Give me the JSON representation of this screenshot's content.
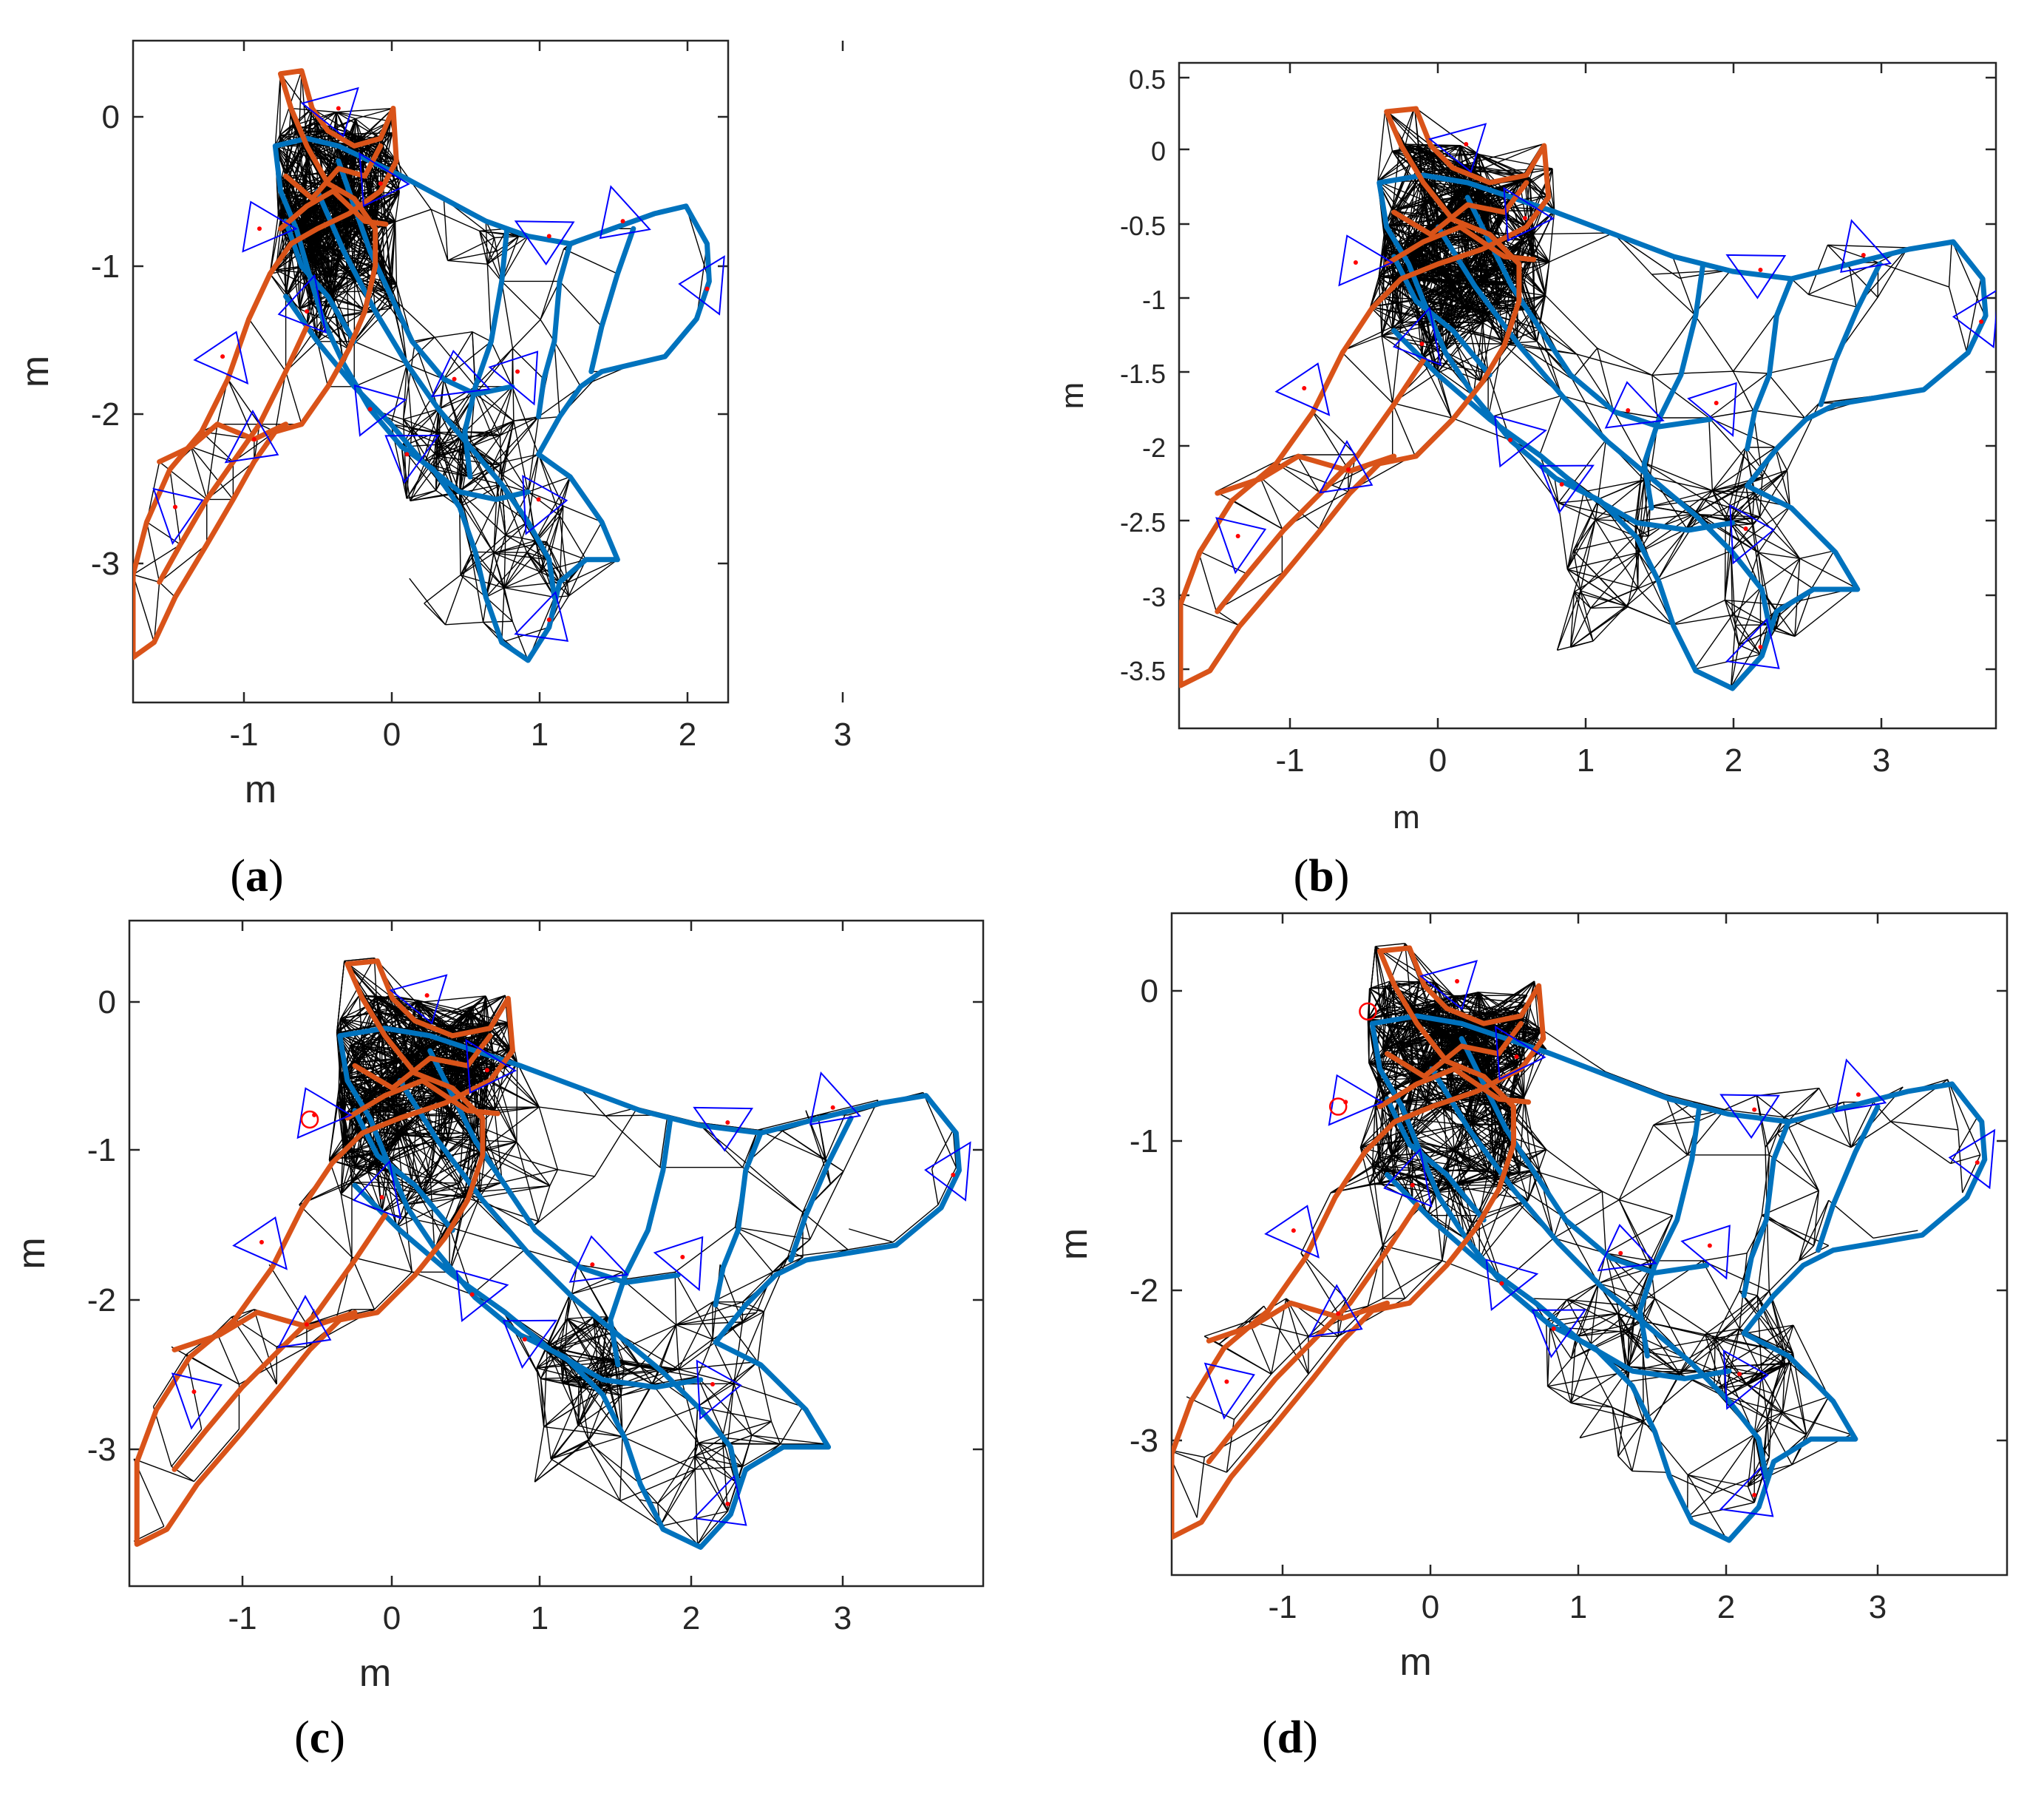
{
  "panels": [
    {
      "caption_letter": "a",
      "xlabel": "m",
      "ylabel": "m",
      "xticks": [
        "-1",
        "0",
        "1",
        "2",
        "3"
      ],
      "yticks": [
        "0",
        "-1",
        "-2",
        "-3"
      ]
    },
    {
      "caption_letter": "b",
      "xlabel": "m",
      "ylabel": "m",
      "xticks": [
        "-1",
        "0",
        "1",
        "2",
        "3"
      ],
      "yticks": [
        "0.5",
        "0",
        "-0.5",
        "-1",
        "-1.5",
        "-2",
        "-2.5",
        "-3",
        "-3.5"
      ]
    },
    {
      "caption_letter": "c",
      "xlabel": "m",
      "ylabel": "m",
      "xticks": [
        "-1",
        "0",
        "1",
        "2",
        "3"
      ],
      "yticks": [
        "0",
        "-1",
        "-2",
        "-3"
      ]
    },
    {
      "caption_letter": "d",
      "xlabel": "m",
      "ylabel": "m",
      "xticks": [
        "-1",
        "0",
        "1",
        "2",
        "3"
      ],
      "yticks": [
        "0",
        "-1",
        "-2",
        "-3"
      ]
    }
  ],
  "colors": {
    "orange": "#d95319",
    "blue": "#0072bd",
    "graph": "#000000",
    "pose": "#0000ff",
    "marker": "#ff0000"
  },
  "chart_data": [
    {
      "type": "line",
      "panel": "a",
      "xlim": [
        -1.75,
        3.9
      ],
      "ylim": [
        -3.9,
        0.5
      ],
      "grid": false
    },
    {
      "type": "line",
      "panel": "b",
      "xlim": [
        -1.75,
        3.8
      ],
      "ylim": [
        -3.9,
        0.6
      ],
      "grid": false
    },
    {
      "type": "line",
      "panel": "c",
      "xlim": [
        -1.78,
        3.9
      ],
      "ylim": [
        -3.9,
        0.55
      ],
      "grid": false
    },
    {
      "type": "line",
      "panel": "d",
      "xlim": [
        -1.72,
        3.9
      ],
      "ylim": [
        -3.88,
        0.5
      ],
      "grid": false
    }
  ],
  "trajectories": {
    "orange": [
      [
        [
          -0.35,
          0.28
        ],
        [
          -0.15,
          0.3
        ],
        [
          -0.05,
          0.05
        ],
        [
          0.1,
          -0.1
        ],
        [
          0.35,
          -0.2
        ],
        [
          0.6,
          -0.15
        ],
        [
          0.72,
          0.05
        ],
        [
          0.75,
          -0.3
        ],
        [
          0.6,
          -0.5
        ],
        [
          0.3,
          -0.65
        ],
        [
          0.0,
          -0.75
        ],
        [
          -0.25,
          -0.85
        ],
        [
          -0.45,
          -1.05
        ],
        [
          -0.65,
          -1.35
        ],
        [
          -0.85,
          -1.75
        ],
        [
          -1.1,
          -2.1
        ],
        [
          -1.4,
          -2.35
        ],
        [
          -1.62,
          -2.7
        ],
        [
          -1.75,
          -3.05
        ],
        [
          -1.75,
          -3.6
        ],
        [
          -1.55,
          -3.5
        ],
        [
          -1.35,
          -3.2
        ],
        [
          -1.05,
          -2.85
        ],
        [
          -0.8,
          -2.55
        ],
        [
          -0.6,
          -2.3
        ],
        [
          -0.4,
          -2.1
        ],
        [
          -0.15,
          -2.05
        ],
        [
          0.1,
          -1.8
        ],
        [
          0.3,
          -1.55
        ],
        [
          0.45,
          -1.3
        ],
        [
          0.55,
          -1.0
        ],
        [
          0.55,
          -0.75
        ],
        [
          0.35,
          -0.55
        ],
        [
          0.1,
          -0.45
        ],
        [
          -0.1,
          -0.2
        ],
        [
          -0.25,
          0.05
        ],
        [
          -0.35,
          0.28
        ]
      ],
      [
        [
          -0.35,
          -0.75
        ],
        [
          -0.1,
          -0.6
        ],
        [
          0.15,
          -0.5
        ],
        [
          0.45,
          -0.7
        ],
        [
          0.65,
          -0.72
        ]
      ],
      [
        [
          -0.3,
          -0.4
        ],
        [
          -0.05,
          -0.55
        ],
        [
          0.2,
          -0.35
        ],
        [
          0.45,
          -0.4
        ],
        [
          0.6,
          -0.2
        ]
      ],
      [
        [
          -0.1,
          -1.4
        ],
        [
          -0.3,
          -1.7
        ],
        [
          -0.55,
          -2.05
        ],
        [
          -0.8,
          -2.3
        ],
        [
          -1.05,
          -2.55
        ],
        [
          -1.3,
          -2.85
        ],
        [
          -1.5,
          -3.1
        ]
      ],
      [
        [
          -1.5,
          -2.3
        ],
        [
          -1.2,
          -2.2
        ],
        [
          -0.95,
          -2.05
        ],
        [
          -0.6,
          -2.15
        ],
        [
          -0.3,
          -2.05
        ]
      ]
    ],
    "blue": [
      [
        [
          -0.4,
          -0.2
        ],
        [
          -0.1,
          -0.15
        ],
        [
          0.2,
          -0.2
        ],
        [
          0.5,
          -0.3
        ],
        [
          0.8,
          -0.4
        ],
        [
          1.2,
          -0.55
        ],
        [
          1.6,
          -0.7
        ],
        [
          2.0,
          -0.8
        ],
        [
          2.4,
          -0.85
        ],
        [
          2.8,
          -0.75
        ],
        [
          3.2,
          -0.65
        ],
        [
          3.5,
          -0.6
        ],
        [
          3.7,
          -0.85
        ],
        [
          3.72,
          -1.1
        ],
        [
          3.6,
          -1.35
        ],
        [
          3.3,
          -1.6
        ],
        [
          3.0,
          -1.65
        ],
        [
          2.7,
          -1.7
        ],
        [
          2.5,
          -1.8
        ],
        [
          2.3,
          -2.0
        ],
        [
          2.1,
          -2.25
        ],
        [
          2.4,
          -2.4
        ],
        [
          2.7,
          -2.7
        ],
        [
          2.85,
          -2.95
        ],
        [
          2.55,
          -2.95
        ],
        [
          2.3,
          -3.1
        ],
        [
          2.2,
          -3.4
        ],
        [
          2.0,
          -3.62
        ],
        [
          1.75,
          -3.5
        ],
        [
          1.6,
          -3.2
        ],
        [
          1.5,
          -2.9
        ],
        [
          1.35,
          -2.6
        ],
        [
          1.1,
          -2.35
        ],
        [
          0.8,
          -2.2
        ],
        [
          0.5,
          -1.95
        ],
        [
          0.25,
          -1.65
        ],
        [
          0.05,
          -1.35
        ],
        [
          -0.1,
          -1.0
        ],
        [
          -0.2,
          -0.75
        ],
        [
          -0.35,
          -0.5
        ],
        [
          -0.4,
          -0.2
        ]
      ],
      [
        [
          0.0,
          -0.5
        ],
        [
          0.25,
          -0.9
        ],
        [
          0.55,
          -1.3
        ],
        [
          0.85,
          -1.65
        ],
        [
          1.15,
          -1.95
        ],
        [
          1.45,
          -2.2
        ],
        [
          1.75,
          -2.45
        ],
        [
          2.0,
          -2.7
        ],
        [
          2.2,
          -2.95
        ],
        [
          2.25,
          -3.2
        ]
      ],
      [
        [
          -0.3,
          -1.2
        ],
        [
          0.0,
          -1.5
        ],
        [
          0.35,
          -1.8
        ],
        [
          0.7,
          -2.05
        ],
        [
          1.0,
          -2.3
        ],
        [
          1.35,
          -2.5
        ],
        [
          1.7,
          -2.55
        ],
        [
          2.0,
          -2.5
        ]
      ],
      [
        [
          1.8,
          -0.75
        ],
        [
          1.75,
          -1.1
        ],
        [
          1.65,
          -1.5
        ],
        [
          1.5,
          -1.8
        ],
        [
          1.4,
          -2.1
        ],
        [
          1.45,
          -2.4
        ]
      ],
      [
        [
          2.4,
          -0.85
        ],
        [
          2.3,
          -1.1
        ],
        [
          2.25,
          -1.5
        ],
        [
          2.15,
          -1.75
        ],
        [
          2.1,
          -2.0
        ]
      ],
      [
        [
          3.0,
          -0.75
        ],
        [
          2.85,
          -1.05
        ],
        [
          2.7,
          -1.4
        ],
        [
          2.6,
          -1.7
        ]
      ],
      [
        [
          0.2,
          -0.3
        ],
        [
          0.35,
          -0.6
        ],
        [
          0.5,
          -0.9
        ],
        [
          0.7,
          -1.2
        ],
        [
          0.9,
          -1.5
        ],
        [
          1.2,
          -1.75
        ],
        [
          1.5,
          -1.85
        ],
        [
          1.85,
          -1.8
        ]
      ],
      [
        [
          -0.3,
          -0.7
        ],
        [
          -0.15,
          -1.0
        ],
        [
          0.1,
          -1.2
        ],
        [
          0.35,
          -1.5
        ]
      ]
    ]
  }
}
